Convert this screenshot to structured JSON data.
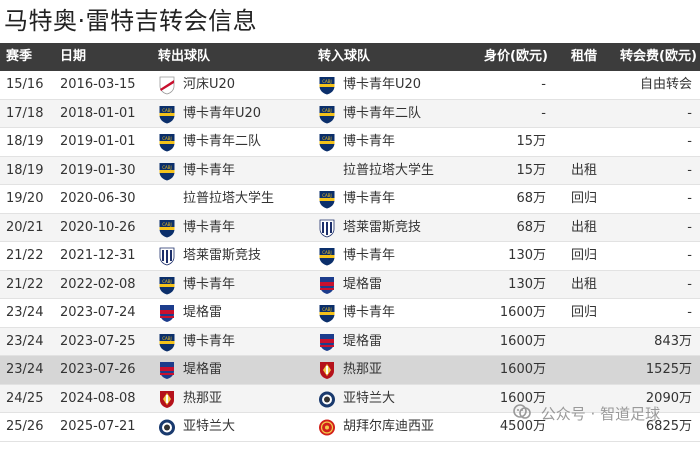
{
  "title": "马特奥·雷特吉转会信息",
  "headers": {
    "season": "赛季",
    "date": "日期",
    "from_club": "转出球队",
    "to_club": "转入球队",
    "value": "身价(欧元)",
    "loan": "租借",
    "fee": "转会费(欧元)"
  },
  "badge_colors": {
    "river": "#c8102e",
    "boca": "#0b2f6b",
    "boca_accent": "#f3c21b",
    "talleres": "#1d2f6a",
    "tigre": "#1c3c8c",
    "tigre_accent": "#c8102e",
    "genoa": "#b5121b",
    "atalanta": "#1a3a6e",
    "frankfurt": "#d2201a"
  },
  "rows": [
    {
      "season": "15/16",
      "date": "2016-03-15",
      "from_club": "河床U20",
      "from_badge": "river-plate-badge-icon",
      "to_club": "博卡青年U20",
      "to_badge": "boca-juniors-badge-icon",
      "value": "-",
      "loan": "",
      "fee": "自由转会"
    },
    {
      "season": "17/18",
      "date": "2018-01-01",
      "from_club": "博卡青年U20",
      "from_badge": "boca-juniors-badge-icon",
      "to_club": "博卡青年二队",
      "to_badge": "boca-juniors-badge-icon",
      "value": "-",
      "loan": "",
      "fee": "-"
    },
    {
      "season": "18/19",
      "date": "2019-01-01",
      "from_club": "博卡青年二队",
      "from_badge": "boca-juniors-badge-icon",
      "to_club": "博卡青年",
      "to_badge": "boca-juniors-badge-icon",
      "value": "15万",
      "loan": "",
      "fee": "-"
    },
    {
      "season": "18/19",
      "date": "2019-01-30",
      "from_club": "博卡青年",
      "from_badge": "boca-juniors-badge-icon",
      "to_club": "拉普拉塔大学生",
      "to_badge": "",
      "value": "15万",
      "loan": "出租",
      "fee": "-"
    },
    {
      "season": "19/20",
      "date": "2020-06-30",
      "from_club": "拉普拉塔大学生",
      "from_badge": "",
      "to_club": "博卡青年",
      "to_badge": "boca-juniors-badge-icon",
      "value": "68万",
      "loan": "回归",
      "fee": "-"
    },
    {
      "season": "20/21",
      "date": "2020-10-26",
      "from_club": "博卡青年",
      "from_badge": "boca-juniors-badge-icon",
      "to_club": "塔莱雷斯竞技",
      "to_badge": "talleres-badge-icon",
      "value": "68万",
      "loan": "出租",
      "fee": "-"
    },
    {
      "season": "21/22",
      "date": "2021-12-31",
      "from_club": "塔莱雷斯竞技",
      "from_badge": "talleres-badge-icon",
      "to_club": "博卡青年",
      "to_badge": "boca-juniors-badge-icon",
      "value": "130万",
      "loan": "回归",
      "fee": "-"
    },
    {
      "season": "21/22",
      "date": "2022-02-08",
      "from_club": "博卡青年",
      "from_badge": "boca-juniors-badge-icon",
      "to_club": "堤格雷",
      "to_badge": "tigre-badge-icon",
      "value": "130万",
      "loan": "出租",
      "fee": "-"
    },
    {
      "season": "23/24",
      "date": "2023-07-24",
      "from_club": "堤格雷",
      "from_badge": "tigre-badge-icon",
      "to_club": "博卡青年",
      "to_badge": "boca-juniors-badge-icon",
      "value": "1600万",
      "loan": "回归",
      "fee": "-"
    },
    {
      "season": "23/24",
      "date": "2023-07-25",
      "from_club": "博卡青年",
      "from_badge": "boca-juniors-badge-icon",
      "to_club": "堤格雷",
      "to_badge": "tigre-badge-icon",
      "value": "1600万",
      "loan": "",
      "fee": "843万"
    },
    {
      "season": "23/24",
      "date": "2023-07-26",
      "from_club": "堤格雷",
      "from_badge": "tigre-badge-icon",
      "to_club": "热那亚",
      "to_badge": "genoa-badge-icon",
      "value": "1600万",
      "loan": "",
      "fee": "1525万"
    },
    {
      "season": "24/25",
      "date": "2024-08-08",
      "from_club": "热那亚",
      "from_badge": "genoa-badge-icon",
      "to_club": "亚特兰大",
      "to_badge": "atalanta-badge-icon",
      "value": "1600万",
      "loan": "",
      "fee": "2090万"
    },
    {
      "season": "25/26",
      "date": "2025-07-21",
      "from_club": "亚特兰大",
      "from_badge": "atalanta-badge-icon",
      "to_club": "胡拜尔库迪西亚",
      "to_badge": "al-qadsiah-badge-icon",
      "value": "4500万",
      "loan": "",
      "fee": "6825万"
    }
  ],
  "highlight_row": 10,
  "watermark": {
    "icon": "wechat-official-account-icon",
    "text": "公众号 · 智道足球"
  }
}
